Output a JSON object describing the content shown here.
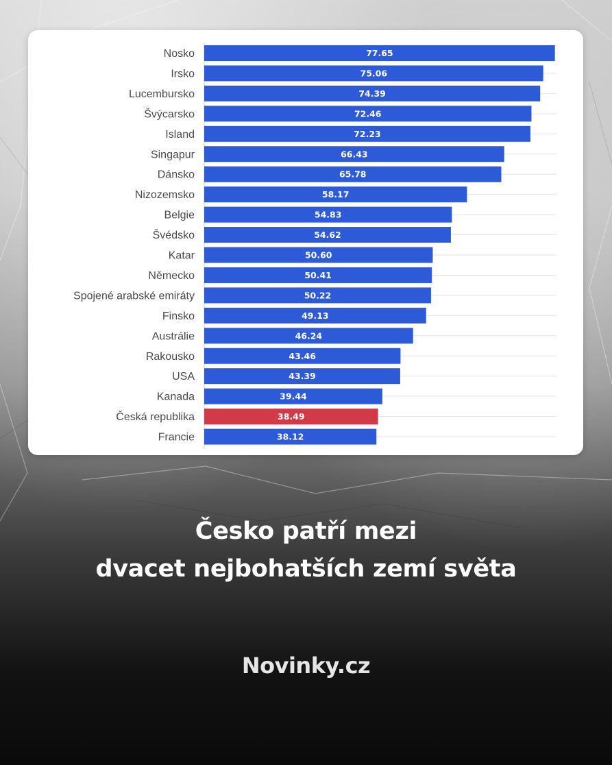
{
  "chart_data": {
    "type": "bar",
    "orientation": "horizontal",
    "categories": [
      "Nosko",
      "Irsko",
      "Lucembursko",
      "Švýcarsko",
      "Island",
      "Singapur",
      "Dánsko",
      "Nizozemsko",
      "Belgie",
      "Švédsko",
      "Katar",
      "Německo",
      "Spojené arabské emiráty",
      "Finsko",
      "Austrálie",
      "Rakousko",
      "USA",
      "Kanada",
      "Česká republika",
      "Francie"
    ],
    "values": [
      77.65,
      75.06,
      74.39,
      72.46,
      72.23,
      66.43,
      65.78,
      58.17,
      54.83,
      54.62,
      50.6,
      50.41,
      50.22,
      49.13,
      46.24,
      43.46,
      43.39,
      39.44,
      38.49,
      38.12
    ],
    "value_labels": [
      "77.65",
      "75.06",
      "74.39",
      "72.46",
      "72.23",
      "66.43",
      "65.78",
      "58.17",
      "54.83",
      "54.62",
      "50.60",
      "50.41",
      "50.22",
      "49.13",
      "46.24",
      "43.46",
      "43.39",
      "39.44",
      "38.49",
      "38.12"
    ],
    "highlight": "Česká republika",
    "colors": {
      "bar": "#2d5bd8",
      "highlight": "#d33a48"
    },
    "xlim": [
      0,
      78
    ],
    "grid": true
  },
  "headline": {
    "line1": "Česko patří mezi",
    "line2": "dvacet nejbohatších zemí světa"
  },
  "brand": "Novinky.cz"
}
